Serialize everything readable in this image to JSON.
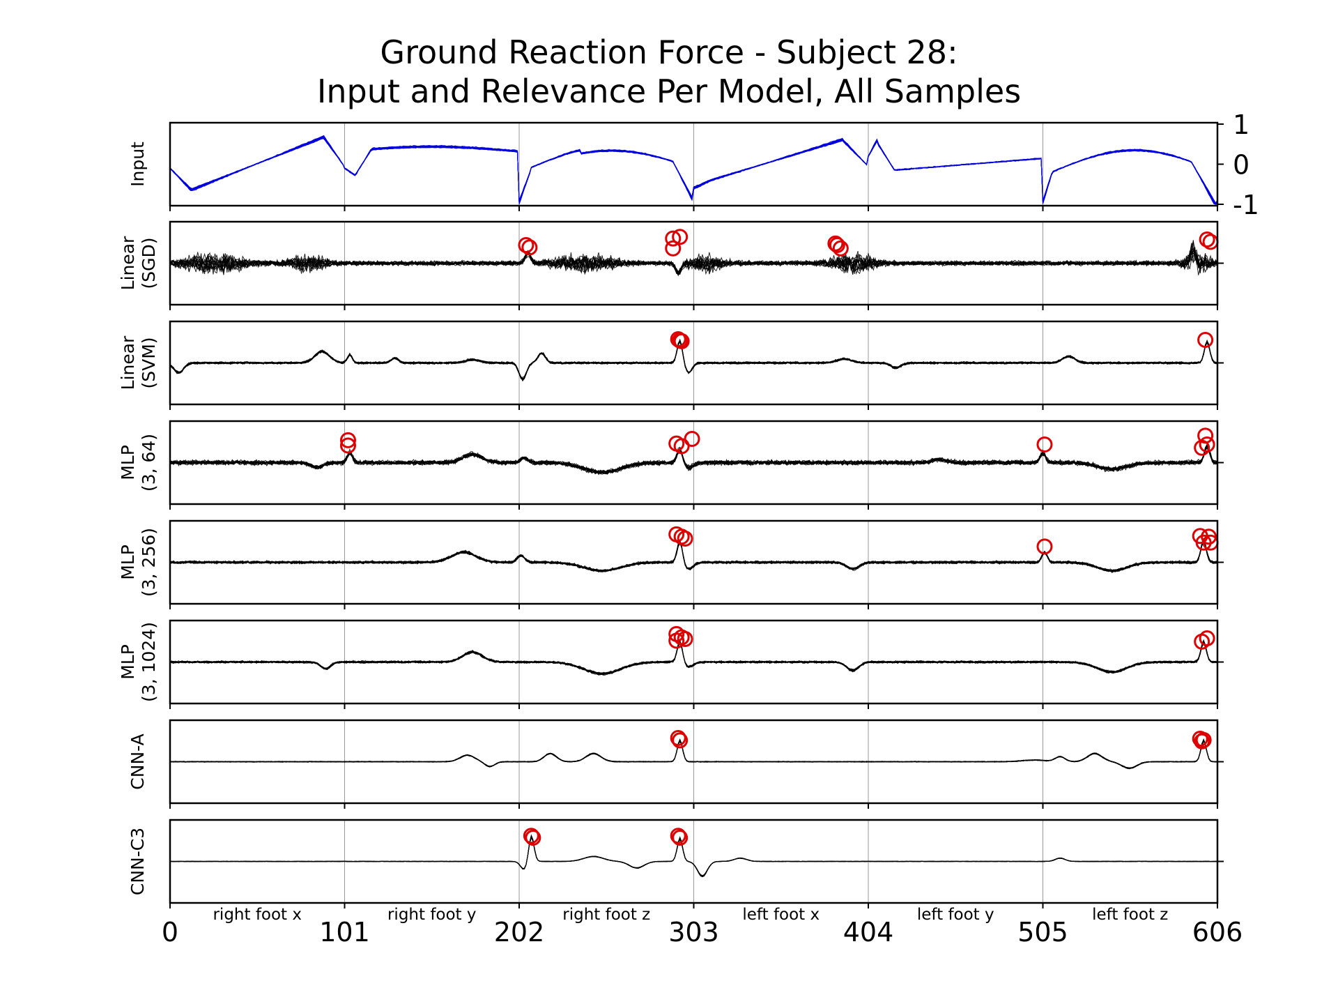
{
  "chart_data": {
    "type": "line",
    "title_line1": "Ground Reaction Force - Subject 28:",
    "title_line2": "Input and Relevance Per Model, All Samples",
    "xlim": [
      0,
      606
    ],
    "x_ticks": [
      0,
      101,
      202,
      303,
      404,
      505,
      606
    ],
    "segment_labels": [
      "right foot x",
      "right foot y",
      "right foot z",
      "left foot x",
      "left foot y",
      "left foot z"
    ],
    "input_y_ticks": [
      1,
      0,
      -1
    ],
    "input_ylim": [
      -1,
      1
    ],
    "colors": {
      "input": "#0000dd",
      "relevance": "#000000",
      "marker": "#dd0000",
      "separator": "#999999"
    },
    "panels": [
      {
        "name": "Input",
        "label": [
          "Input"
        ],
        "kind": "input",
        "noise": 0.02,
        "spread": 0.06,
        "spikes": [],
        "marks": []
      },
      {
        "name": "Linear (SGD)",
        "label": [
          "Linear",
          "(SGD)"
        ],
        "kind": "sgd",
        "noise": 0.28,
        "spread": 0.18,
        "spikes": [
          [
            207,
            0.3
          ],
          [
            294,
            -0.3
          ],
          [
            592,
            0.35
          ]
        ],
        "marks": [
          [
            206,
            0.55
          ],
          [
            208,
            0.48
          ],
          [
            291,
            0.75
          ],
          [
            291,
            0.45
          ],
          [
            295,
            0.8
          ],
          [
            385,
            0.6
          ],
          [
            386,
            0.55
          ],
          [
            388,
            0.45
          ],
          [
            600,
            0.72
          ],
          [
            602,
            0.65
          ]
        ]
      },
      {
        "name": "Linear (SVM)",
        "label": [
          "Linear",
          "(SVM)"
        ],
        "kind": "svm",
        "noise": 0.05,
        "spread": 0.06,
        "spikes": [
          [
            295,
            0.7
          ],
          [
            600,
            0.65
          ]
        ],
        "marks": [
          [
            294,
            0.72
          ],
          [
            295,
            0.68
          ],
          [
            296,
            0.66
          ],
          [
            599,
            0.7
          ]
        ]
      },
      {
        "name": "MLP (3, 64)",
        "label": [
          "MLP",
          "(3, 64)"
        ],
        "kind": "mlp64",
        "noise": 0.1,
        "spread": 0.08,
        "spikes": [
          [
            104,
            0.3
          ],
          [
            295,
            0.45
          ],
          [
            505,
            0.3
          ],
          [
            600,
            0.5
          ]
        ],
        "marks": [
          [
            103,
            0.68
          ],
          [
            103,
            0.52
          ],
          [
            293,
            0.58
          ],
          [
            296,
            0.5
          ],
          [
            302,
            0.72
          ],
          [
            506,
            0.55
          ],
          [
            597,
            0.45
          ],
          [
            599,
            0.82
          ],
          [
            600,
            0.55
          ]
        ]
      },
      {
        "name": "MLP (3, 256)",
        "label": [
          "MLP",
          "(3, 256)"
        ],
        "kind": "mlp256",
        "noise": 0.06,
        "spread": 0.07,
        "spikes": [
          [
            295,
            0.65
          ],
          [
            506,
            0.3
          ],
          [
            598,
            0.65
          ]
        ],
        "marks": [
          [
            293,
            0.85
          ],
          [
            296,
            0.78
          ],
          [
            298,
            0.72
          ],
          [
            506,
            0.48
          ],
          [
            596,
            0.8
          ],
          [
            598,
            0.6
          ],
          [
            601,
            0.78
          ],
          [
            602,
            0.6
          ]
        ]
      },
      {
        "name": "MLP (3, 1024)",
        "label": [
          "MLP",
          "(3, 1024)"
        ],
        "kind": "mlp1024",
        "noise": 0.05,
        "spread": 0.05,
        "spikes": [
          [
            295,
            0.65
          ],
          [
            598,
            0.6
          ]
        ],
        "marks": [
          [
            293,
            0.85
          ],
          [
            293,
            0.65
          ],
          [
            296,
            0.75
          ],
          [
            298,
            0.7
          ],
          [
            597,
            0.62
          ],
          [
            600,
            0.72
          ]
        ]
      },
      {
        "name": "CNN-A",
        "label": [
          "CNN-A"
        ],
        "kind": "cnna",
        "noise": 0.02,
        "spread": 0.04,
        "spikes": [
          [
            295,
            0.65
          ],
          [
            598,
            0.65
          ]
        ],
        "marks": [
          [
            294,
            0.72
          ],
          [
            295,
            0.65
          ],
          [
            596,
            0.7
          ],
          [
            597,
            0.62
          ],
          [
            598,
            0.66
          ]
        ]
      },
      {
        "name": "CNN-C3",
        "label": [
          "CNN-C3"
        ],
        "kind": "cnnc3",
        "noise": 0.01,
        "spread": 0.03,
        "spikes": [
          [
            209,
            0.8
          ],
          [
            295,
            0.7
          ]
        ],
        "marks": [
          [
            209,
            0.78
          ],
          [
            210,
            0.72
          ],
          [
            294,
            0.78
          ],
          [
            295,
            0.72
          ]
        ]
      }
    ]
  }
}
